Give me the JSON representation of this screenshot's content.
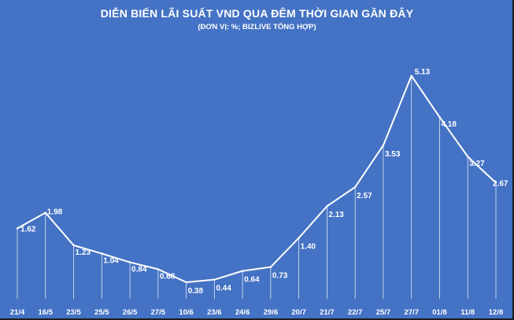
{
  "chart_data": {
    "type": "line",
    "title": "DIỄN BIẾN LÃI SUẤT VND QUA ĐÊM THỜI GIAN GẦN ĐÂY",
    "subtitle": "(ĐƠN VỊ: %; BIZLIVE TỔNG HỢP)",
    "categories": [
      "21/4",
      "16/5",
      "23/5",
      "25/5",
      "26/5",
      "27/5",
      "10/6",
      "23/6",
      "24/6",
      "29/6",
      "20/7",
      "21/7",
      "22/7",
      "25/7",
      "27/7",
      "01/8",
      "11/8",
      "12/8"
    ],
    "values": [
      1.62,
      1.98,
      1.23,
      1.04,
      0.84,
      0.68,
      0.38,
      0.44,
      0.64,
      0.73,
      1.4,
      2.13,
      2.57,
      3.53,
      5.13,
      4.18,
      3.27,
      2.67
    ],
    "data_labels": [
      "1.62",
      "1.98",
      "1.23",
      "1.04",
      "0.84",
      "0.68",
      "0.38",
      "0.44",
      "0.64",
      "0.73",
      "1.40",
      "2.13",
      "2.57",
      "3.53",
      "5.13",
      "4.18",
      "3.27",
      "2.67"
    ],
    "xlabel": "",
    "ylabel": "",
    "ylim": [
      0,
      5.3
    ],
    "grid": false,
    "drop_lines": true,
    "colors": {
      "background": "#4472C4",
      "line": "#ffffff",
      "text": "#ffffff"
    }
  }
}
